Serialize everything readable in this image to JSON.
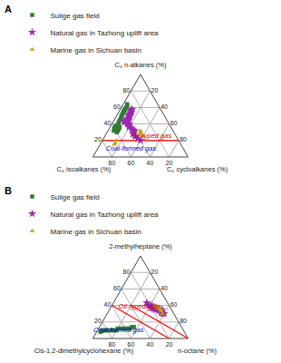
{
  "chart_data": [
    {
      "type": "ternary",
      "title": "A",
      "sum": 100,
      "top_label": "C₆ n-alkanes (%)",
      "left_label": "C₆ isoalkanes (%)",
      "right_label": "C₆ cycloalkanes (%)",
      "ticks": [
        20,
        40,
        60,
        80
      ],
      "grid": true,
      "legend": "upper left",
      "series": [
        {
          "name": "Sulige gas field",
          "color": "#2e7d32",
          "marker": "square",
          "values": [
            [
              35,
              55,
              10
            ],
            [
              33,
              57,
              10
            ],
            [
              34,
              56,
              10
            ],
            [
              36,
              54,
              10
            ],
            [
              32,
              58,
              10
            ],
            [
              30,
              60,
              10
            ],
            [
              31,
              59,
              10
            ],
            [
              35,
              57,
              8
            ],
            [
              33,
              59,
              8
            ],
            [
              36,
              58,
              6
            ],
            [
              34,
              60,
              6
            ],
            [
              32,
              62,
              6
            ],
            [
              37,
              57,
              6
            ],
            [
              35,
              60,
              5
            ],
            [
              40,
              53,
              7
            ],
            [
              38,
              55,
              7
            ],
            [
              38,
              57,
              5
            ],
            [
              42,
              52,
              6
            ],
            [
              44,
              50,
              6
            ],
            [
              46,
              48,
              6
            ],
            [
              48,
              46,
              6
            ],
            [
              50,
              45,
              5
            ],
            [
              52,
              43,
              5
            ],
            [
              54,
              41,
              5
            ],
            [
              55,
              40,
              5
            ],
            [
              56,
              39,
              5
            ],
            [
              58,
              37,
              5
            ],
            [
              60,
              35,
              5
            ],
            [
              62,
              33,
              5
            ],
            [
              64,
              32,
              4
            ]
          ]
        },
        {
          "name": "Natural gas in Tazhong uplift area",
          "color": "#9c27b0",
          "marker": "star",
          "values": [
            [
              20,
              40,
              40
            ],
            [
              22,
              42,
              36
            ],
            [
              25,
              43,
              32
            ],
            [
              28,
              44,
              28
            ],
            [
              30,
              42,
              28
            ],
            [
              32,
              40,
              28
            ],
            [
              33,
              42,
              25
            ],
            [
              35,
              42,
              23
            ],
            [
              36,
              44,
              20
            ],
            [
              38,
              43,
              19
            ],
            [
              40,
              42,
              18
            ],
            [
              40,
              44,
              16
            ],
            [
              42,
              43,
              15
            ],
            [
              43,
              42,
              15
            ],
            [
              44,
              41,
              15
            ],
            [
              45,
              40,
              15
            ],
            [
              46,
              40,
              14
            ],
            [
              47,
              39,
              14
            ],
            [
              48,
              38,
              14
            ],
            [
              50,
              37,
              13
            ],
            [
              51,
              36,
              13
            ],
            [
              52,
              35,
              13
            ],
            [
              53,
              34,
              13
            ],
            [
              54,
              33,
              13
            ],
            [
              55,
              32,
              13
            ],
            [
              56,
              32,
              12
            ],
            [
              57,
              31,
              12
            ],
            [
              58,
              30,
              12
            ],
            [
              42,
              46,
              12
            ],
            [
              44,
              45,
              11
            ]
          ]
        },
        {
          "name": "Marine gas in Sichuan basin",
          "color": "#c8a000",
          "marker": "triangle-up",
          "values": [
            [
              25,
              35,
              40
            ],
            [
              27,
              36,
              37
            ],
            [
              30,
              35,
              35
            ],
            [
              32,
              34,
              34
            ],
            [
              15,
              70,
              15
            ],
            [
              17,
              68,
              15
            ],
            [
              20,
              65,
              15
            ]
          ]
        }
      ],
      "reference_lines": [
        {
          "color": "red",
          "start": [
            20,
            80,
            0
          ],
          "end": [
            20,
            0,
            80
          ]
        }
      ],
      "annotations": [
        {
          "text": "Oil-typed gas",
          "color": "#cc0000",
          "at": [
            25,
            5,
            70
          ]
        },
        {
          "text": "Coal-formed gas",
          "color": "#0000cc",
          "at": [
            10,
            55,
            35
          ]
        }
      ]
    },
    {
      "type": "ternary",
      "title": "B",
      "sum": 100,
      "top_label": "2-methylheptane (%)",
      "left_label": "Cis-1,2-dimethylcyclohexane (%)",
      "right_label": "n-octane (%)",
      "ticks": [
        20,
        40,
        60,
        80
      ],
      "grid": true,
      "legend": "upper left",
      "series": [
        {
          "name": "Sulige gas field",
          "color": "#2e7d32",
          "marker": "square",
          "values": [
            [
              10,
              85,
              5
            ],
            [
              10,
              82,
              8
            ],
            [
              10,
              80,
              10
            ],
            [
              10,
              78,
              12
            ],
            [
              10,
              75,
              15
            ],
            [
              10,
              73,
              17
            ],
            [
              10,
              70,
              20
            ],
            [
              12,
              68,
              20
            ],
            [
              12,
              65,
              23
            ],
            [
              12,
              62,
              26
            ],
            [
              12,
              60,
              28
            ],
            [
              12,
              57,
              31
            ],
            [
              12,
              55,
              33
            ],
            [
              14,
              52,
              34
            ],
            [
              14,
              50,
              36
            ],
            [
              10,
              85,
              5
            ],
            [
              8,
              88,
              4
            ],
            [
              9,
              86,
              5
            ]
          ]
        },
        {
          "name": "Natural gas in Tazhong uplift area",
          "color": "#9c27b0",
          "marker": "star",
          "values": [
            [
              35,
              10,
              55
            ],
            [
              36,
              12,
              52
            ],
            [
              36,
              14,
              50
            ],
            [
              37,
              15,
              48
            ],
            [
              38,
              17,
              45
            ],
            [
              40,
              18,
              42
            ],
            [
              40,
              20,
              40
            ],
            [
              40,
              22,
              38
            ],
            [
              43,
              22,
              35
            ],
            [
              33,
              12,
              55
            ],
            [
              34,
              13,
              53
            ],
            [
              35,
              15,
              50
            ],
            [
              37,
              16,
              47
            ],
            [
              37,
              18,
              45
            ],
            [
              37,
              20,
              43
            ],
            [
              30,
              10,
              60
            ],
            [
              30,
              12,
              58
            ],
            [
              31,
              13,
              56
            ],
            [
              34,
              14,
              52
            ],
            [
              35,
              17,
              48
            ],
            [
              36,
              18,
              46
            ],
            [
              37,
              20,
              43
            ]
          ]
        },
        {
          "name": "Marine gas in Sichuan basin",
          "color": "#c8a000",
          "marker": "triangle-up",
          "values": [
            [
              40,
              15,
              45
            ],
            [
              38,
              14,
              48
            ],
            [
              37,
              13,
              50
            ],
            [
              36,
              12,
              52
            ],
            [
              35,
              11,
              54
            ],
            [
              33,
              12,
              55
            ],
            [
              30,
              12,
              58
            ]
          ]
        }
      ],
      "reference_lines": [
        {
          "color": "red",
          "start": [
            40,
            60,
            0
          ],
          "end": [
            0,
            20,
            80
          ]
        },
        {
          "color": "red",
          "start": [
            40,
            40,
            20
          ],
          "end": [
            0,
            0,
            100
          ]
        }
      ],
      "annotations": [
        {
          "text": "Oil-typed gas",
          "color": "#cc0000",
          "at": [
            38,
            12,
            50
          ]
        },
        {
          "text": "Coal-formed gas",
          "color": "#0000cc",
          "at": [
            10,
            68,
            22
          ]
        }
      ]
    }
  ]
}
